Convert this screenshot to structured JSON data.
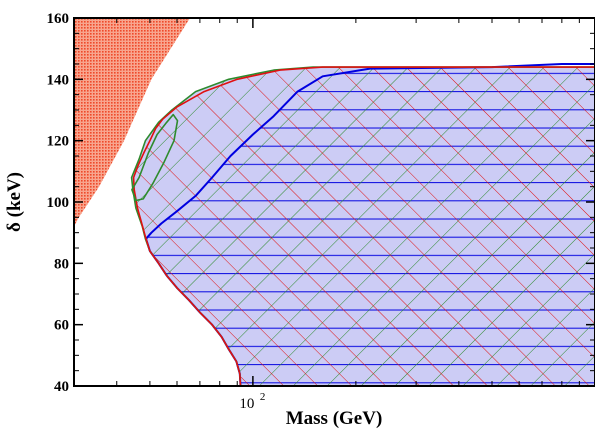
{
  "chart_data": {
    "type": "area",
    "xlabel": "Mass (GeV)",
    "ylabel": "δ (keV)",
    "x_scale": "log",
    "xlim": [
      30,
      1000
    ],
    "ylim": [
      40,
      160
    ],
    "x_tick_labels": [
      {
        "value": 100,
        "label": "10",
        "exponent": "2"
      }
    ],
    "y_ticks": [
      40,
      60,
      80,
      100,
      120,
      140,
      160
    ],
    "colors": {
      "region_fill": "#ccccf5",
      "blue": "#0000e0",
      "green": "#2e8b2e",
      "red": "#e01010",
      "excluded_fill": "#f26b4a"
    },
    "series": [
      {
        "color": "blue",
        "style": "horizontal hatch",
        "boundary": [
          [
            92.0,
            40
          ],
          [
            91.6,
            44
          ],
          [
            89.5,
            48
          ],
          [
            85,
            52
          ],
          [
            81,
            56
          ],
          [
            76,
            60
          ],
          [
            70,
            64
          ],
          [
            65,
            68
          ],
          [
            60,
            72
          ],
          [
            56,
            76
          ],
          [
            53,
            80
          ],
          [
            50,
            84
          ],
          [
            48.7,
            88
          ],
          [
            50.5,
            90
          ],
          [
            54,
            93
          ],
          [
            60,
            97
          ],
          [
            68,
            102
          ],
          [
            76,
            108
          ],
          [
            86,
            115
          ],
          [
            100,
            122
          ],
          [
            115,
            128
          ],
          [
            135,
            136
          ],
          [
            160,
            141
          ],
          [
            220,
            143.5
          ],
          [
            500,
            144
          ],
          [
            800,
            145
          ],
          [
            1000,
            145
          ],
          [
            1000,
            40
          ]
        ]
      },
      {
        "color": "green",
        "style": "diagonal hatch (rising)",
        "boundary": [
          [
            92.0,
            40
          ],
          [
            91.6,
            44
          ],
          [
            89.5,
            48
          ],
          [
            85,
            52
          ],
          [
            81,
            56
          ],
          [
            76,
            60
          ],
          [
            70,
            64
          ],
          [
            65,
            68
          ],
          [
            60,
            72
          ],
          [
            56,
            76
          ],
          [
            53,
            80
          ],
          [
            50,
            84
          ],
          [
            48.5,
            88
          ],
          [
            47.5,
            92
          ],
          [
            45.5,
            98
          ],
          [
            44.6,
            104
          ],
          [
            44.2,
            108
          ],
          [
            46.5,
            114
          ],
          [
            48.5,
            120
          ],
          [
            53,
            126
          ],
          [
            58,
            130
          ],
          [
            68,
            136
          ],
          [
            85,
            140
          ],
          [
            115,
            143
          ],
          [
            150,
            144
          ],
          [
            500,
            144
          ],
          [
            1000,
            144
          ],
          [
            1000,
            40
          ]
        ]
      },
      {
        "color": "red",
        "style": "diagonal hatch (falling)",
        "boundary": [
          [
            92.0,
            40
          ],
          [
            91.6,
            44
          ],
          [
            89.5,
            48
          ],
          [
            85,
            52
          ],
          [
            81,
            56
          ],
          [
            76,
            60
          ],
          [
            70,
            64
          ],
          [
            65,
            68
          ],
          [
            60,
            72
          ],
          [
            56,
            76
          ],
          [
            53,
            80
          ],
          [
            50,
            84
          ],
          [
            48.7,
            88
          ],
          [
            47.6,
            92
          ],
          [
            46,
            98
          ],
          [
            45,
            104
          ],
          [
            44.8,
            108
          ],
          [
            46.2,
            112
          ],
          [
            48,
            116
          ],
          [
            50,
            120
          ],
          [
            52,
            124
          ],
          [
            54.5,
            127
          ],
          [
            60,
            131
          ],
          [
            72,
            136
          ],
          [
            90,
            140
          ],
          [
            120,
            143
          ],
          [
            160,
            144
          ],
          [
            500,
            144
          ],
          [
            1000,
            144
          ],
          [
            1000,
            40
          ]
        ]
      }
    ],
    "excluded_region": [
      [
        30,
        160
      ],
      [
        65.5,
        160
      ],
      [
        50.5,
        140
      ],
      [
        42,
        120
      ],
      [
        35.5,
        105
      ],
      [
        31,
        95
      ],
      [
        30,
        92
      ]
    ],
    "green_island": [
      [
        46.5,
        108
      ],
      [
        49.5,
        116
      ],
      [
        52.5,
        122
      ],
      [
        56,
        126
      ],
      [
        58.5,
        128.5
      ],
      [
        60.2,
        126.5
      ],
      [
        58.8,
        120
      ],
      [
        55,
        113
      ],
      [
        51,
        106
      ],
      [
        47.8,
        101
      ],
      [
        45.5,
        100.5
      ],
      [
        44.3,
        104
      ]
    ]
  }
}
